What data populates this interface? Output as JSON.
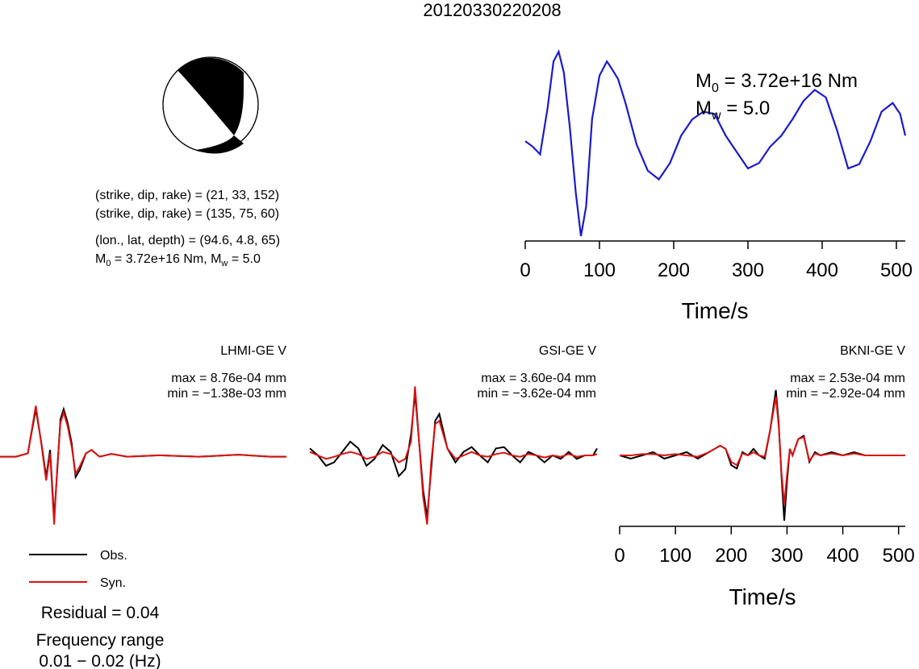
{
  "title": "20120330220208",
  "colors": {
    "obs": "#000000",
    "syn": "#dd1111",
    "stf": "#1a1acc",
    "beachball": "#000000"
  },
  "params": {
    "line1": "(strike, dip, rake) = (21, 33, 152)",
    "line2": "(strike, dip, rake) = (135, 75, 60)",
    "line3": "(lon., lat, depth) = (94.6, 4.8, 65)",
    "m0_prefix": "M",
    "m0_sub": "0",
    "m0_value": " = 3.72e+16 Nm, M",
    "mw_sub": "w",
    "mw_value": " = 5.0"
  },
  "stf_panel": {
    "m0_label": "M",
    "m0_sub": "0",
    "m0_text": " = 3.72e+16 Nm",
    "mw_label": "M",
    "mw_sub": "w",
    "mw_text": " = 5.0"
  },
  "stations": [
    {
      "name": "LHMI-GE V",
      "max": "max = 8.76e-04 mm",
      "min": "min = −1.38e-03 mm"
    },
    {
      "name": "GSI-GE V",
      "max": "max = 3.60e-04 mm",
      "min": "min = −3.62e-04 mm"
    },
    {
      "name": "BKNI-GE V",
      "max": "max = 2.53e-04 mm",
      "min": "min = −2.92e-04 mm"
    }
  ],
  "legend": {
    "obs": "Obs.",
    "syn": "Syn."
  },
  "residual": "Residual = 0.04",
  "freq_label": "Frequency range",
  "freq_value": "0.01 − 0.02 (Hz)",
  "chart_data": [
    {
      "type": "line",
      "name": "source time function",
      "xlabel": "Time/s",
      "xlim": [
        0,
        512
      ],
      "xticks": [
        "0",
        "100",
        "200",
        "300",
        "400",
        "500"
      ],
      "x": [
        0,
        10,
        20,
        30,
        38,
        45,
        52,
        60,
        68,
        75,
        82,
        90,
        100,
        110,
        115,
        125,
        135,
        150,
        165,
        180,
        195,
        210,
        225,
        240,
        255,
        270,
        285,
        300,
        315,
        330,
        345,
        360,
        375,
        390,
        405,
        420,
        435,
        450,
        465,
        480,
        495,
        505,
        512
      ],
      "y": [
        0.15,
        0.1,
        0.03,
        0.45,
        0.88,
        0.97,
        0.78,
        0.28,
        -0.32,
        -0.72,
        -0.45,
        0.35,
        0.75,
        0.88,
        0.83,
        0.72,
        0.5,
        0.12,
        -0.12,
        -0.2,
        -0.05,
        0.2,
        0.35,
        0.42,
        0.4,
        0.2,
        0.05,
        -0.1,
        -0.05,
        0.1,
        0.2,
        0.35,
        0.52,
        0.62,
        0.55,
        0.25,
        -0.1,
        -0.06,
        0.15,
        0.42,
        0.5,
        0.4,
        0.2
      ]
    },
    {
      "type": "line",
      "name": "LHMI-GE V",
      "series": [
        {
          "name": "Obs.",
          "x": [
            0,
            20,
            35,
            45,
            52,
            58,
            63,
            68,
            72,
            76,
            80,
            85,
            90,
            95,
            100,
            108,
            115,
            125,
            140,
            160,
            200,
            250,
            300,
            340,
            360
          ],
          "y": [
            0,
            0,
            0.05,
            0.7,
            0.2,
            -0.3,
            0.1,
            -0.9,
            -0.2,
            0.55,
            0.7,
            0.5,
            0.2,
            -0.3,
            -0.2,
            0.05,
            0.1,
            0.0,
            0.04,
            0.0,
            0.02,
            0.0,
            0.03,
            0.0,
            0.0
          ]
        },
        {
          "name": "Syn.",
          "x": [
            0,
            20,
            35,
            45,
            52,
            58,
            63,
            68,
            72,
            76,
            80,
            85,
            90,
            95,
            100,
            108,
            115,
            125,
            140,
            160,
            200,
            250,
            300,
            340,
            360
          ],
          "y": [
            0,
            0,
            0.05,
            0.75,
            0.18,
            -0.35,
            0.05,
            -1.0,
            -0.15,
            0.5,
            0.65,
            0.45,
            0.15,
            -0.25,
            -0.15,
            0.05,
            0.1,
            0.0,
            0.04,
            0.0,
            0.02,
            0.0,
            0.03,
            0.0,
            0.0
          ]
        }
      ]
    },
    {
      "type": "line",
      "name": "GSI-GE V",
      "series": [
        {
          "name": "Obs.",
          "x": [
            0,
            10,
            20,
            30,
            40,
            50,
            60,
            70,
            80,
            90,
            100,
            110,
            118,
            125,
            130,
            135,
            140,
            145,
            150,
            155,
            160,
            170,
            180,
            190,
            200,
            210,
            220,
            230,
            240,
            250,
            260,
            270,
            280,
            290,
            300,
            310,
            320,
            330,
            340,
            350,
            355
          ],
          "y": [
            0.1,
            0.0,
            -0.15,
            -0.1,
            0.05,
            0.2,
            0.1,
            -0.15,
            -0.05,
            0.15,
            0.05,
            -0.3,
            -0.2,
            0.3,
            0.9,
            0.2,
            -0.5,
            -0.9,
            -0.2,
            0.5,
            0.6,
            0.1,
            -0.1,
            0.05,
            0.12,
            0.0,
            -0.1,
            0.1,
            0.12,
            0.0,
            -0.1,
            0.05,
            0.0,
            -0.1,
            0.0,
            -0.05,
            0.05,
            -0.05,
            0.0,
            0.0,
            0.1
          ]
        },
        {
          "name": "Syn.",
          "x": [
            0,
            10,
            20,
            30,
            40,
            50,
            60,
            70,
            80,
            90,
            100,
            110,
            118,
            125,
            130,
            135,
            140,
            145,
            150,
            155,
            160,
            170,
            180,
            190,
            200,
            210,
            220,
            230,
            240,
            250,
            260,
            270,
            280,
            290,
            300,
            310,
            320,
            330,
            340,
            350,
            355
          ],
          "y": [
            0.05,
            0.0,
            -0.05,
            -0.02,
            0.02,
            0.05,
            0.02,
            -0.05,
            -0.02,
            0.05,
            0.02,
            -0.1,
            -0.05,
            0.2,
            1.0,
            0.2,
            -0.6,
            -1.0,
            -0.1,
            0.45,
            0.5,
            0.1,
            -0.05,
            0.0,
            0.05,
            0.0,
            -0.02,
            0.02,
            0.04,
            0.0,
            -0.02,
            0.02,
            0.0,
            -0.03,
            0.0,
            -0.02,
            0.02,
            -0.02,
            0.0,
            0.0,
            0.02
          ]
        }
      ]
    },
    {
      "type": "line",
      "name": "BKNI-GE V",
      "xlabel": "Time/s",
      "xlim": [
        0,
        512
      ],
      "xticks": [
        "0",
        "100",
        "200",
        "300",
        "400",
        "500"
      ],
      "series": [
        {
          "name": "Obs.",
          "x": [
            0,
            20,
            40,
            60,
            80,
            100,
            120,
            140,
            160,
            180,
            190,
            200,
            210,
            220,
            230,
            240,
            250,
            260,
            270,
            280,
            285,
            290,
            295,
            300,
            305,
            310,
            320,
            330,
            340,
            350,
            360,
            380,
            400,
            420,
            440,
            460,
            480,
            500,
            512
          ],
          "y": [
            0,
            -0.05,
            0.0,
            0.05,
            -0.05,
            0.0,
            0.05,
            -0.05,
            0.05,
            0.15,
            0.1,
            -0.15,
            -0.2,
            0.05,
            0.0,
            0.1,
            0.0,
            -0.05,
            0.4,
            1.0,
            0.5,
            -0.3,
            -1.0,
            -0.4,
            0.1,
            0.0,
            0.25,
            0.3,
            -0.1,
            0.05,
            0.0,
            0.05,
            0.0,
            0.05,
            0.0,
            0.0,
            0.0,
            0.0,
            0.0
          ]
        },
        {
          "name": "Syn.",
          "x": [
            0,
            20,
            40,
            60,
            80,
            100,
            120,
            140,
            160,
            180,
            190,
            200,
            210,
            220,
            230,
            240,
            250,
            260,
            270,
            280,
            285,
            290,
            295,
            300,
            305,
            310,
            320,
            330,
            340,
            350,
            360,
            380,
            400,
            420,
            440,
            460,
            480,
            500,
            512
          ],
          "y": [
            0,
            0.0,
            0.02,
            0.02,
            0.0,
            0.02,
            0.0,
            -0.02,
            0.05,
            0.15,
            0.1,
            -0.1,
            -0.15,
            0.03,
            0.0,
            0.05,
            0.0,
            -0.02,
            0.4,
            0.9,
            0.45,
            -0.25,
            -0.75,
            -0.3,
            0.1,
            0.0,
            0.25,
            0.28,
            -0.08,
            0.03,
            0.0,
            0.03,
            0.0,
            0.03,
            0.0,
            0.0,
            0.0,
            0.0,
            0.0
          ]
        }
      ]
    }
  ]
}
